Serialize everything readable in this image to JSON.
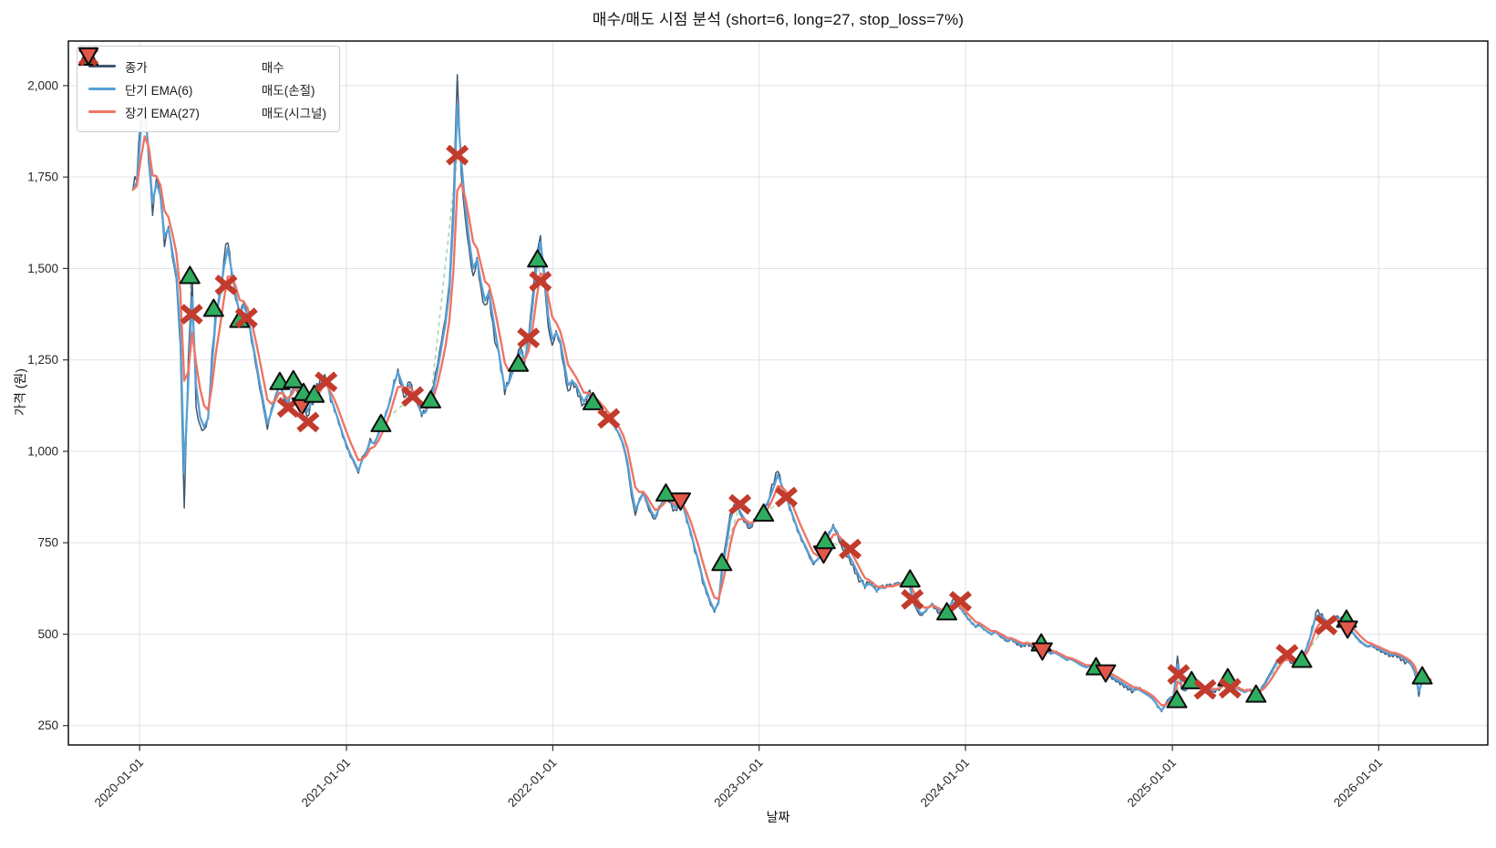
{
  "figure": {
    "title": "매수/매도 시점 분석 (short=6, long=27, stop_loss=7%)",
    "xlabel": "날짜",
    "ylabel": "가격 (원)"
  },
  "legend": {
    "items": [
      {
        "label": "종가",
        "icon": "line",
        "color": "#3f5870"
      },
      {
        "label": "단기 EMA(6)",
        "icon": "line",
        "color": "#57a0d6"
      },
      {
        "label": "장기 EMA(27)",
        "icon": "line",
        "color": "#ee7565"
      },
      {
        "label": "매수",
        "icon": "triangle-up",
        "color": "#2fad5f"
      },
      {
        "label": "매도(손절)",
        "icon": "x",
        "color": "#c23b2c"
      },
      {
        "label": "매도(시그널)",
        "icon": "triangle-down",
        "color": "#e2574a"
      }
    ]
  },
  "chart_data": {
    "type": "line",
    "title": "매수/매도 시점 분석 (short=6, long=27, stop_loss=7%)",
    "xlabel": "날짜",
    "ylabel": "가격 (원)",
    "grid": true,
    "legend_position": "upper-left",
    "x_domain": [
      "2019-08-28",
      "2026-07-13"
    ],
    "ylim": [
      197,
      2122
    ],
    "yticks": [
      250,
      500,
      750,
      1000,
      1250,
      1500,
      1750,
      2000
    ],
    "ytick_labels": [
      "250",
      "500",
      "750",
      "1,000",
      "1,250",
      "1,500",
      "1,750",
      "2,000"
    ],
    "xticks": [
      "2020-01-01",
      "2021-01-01",
      "2022-01-01",
      "2023-01-01",
      "2024-01-01",
      "2025-01-01",
      "2026-01-01"
    ],
    "series_start_date": "2019-12-20",
    "interval_days": 7,
    "series": [
      {
        "name": "종가",
        "kind": "close",
        "color": "#3f5870",
        "width": 1.5
      },
      {
        "name": "단기 EMA(6)",
        "kind": "ema",
        "span_days": 6,
        "color": "#57a0d6",
        "width": 2.3
      },
      {
        "name": "장기 EMA(27)",
        "kind": "ema",
        "span_days": 27,
        "color": "#ee7565",
        "width": 2.4
      }
    ],
    "close": [
      1715,
      1740,
      1905,
      1950,
      1790,
      1645,
      1748,
      1690,
      1560,
      1615,
      1530,
      1470,
      1285,
      845,
      1250,
      1480,
      1120,
      1072,
      1060,
      1095,
      1270,
      1400,
      1440,
      1520,
      1570,
      1475,
      1415,
      1360,
      1405,
      1365,
      1300,
      1240,
      1175,
      1120,
      1060,
      1115,
      1150,
      1190,
      1155,
      1125,
      1165,
      1195,
      1155,
      1160,
      1095,
      1135,
      1155,
      1180,
      1200,
      1190,
      1135,
      1108,
      1075,
      1040,
      1010,
      985,
      965,
      940,
      985,
      1000,
      1035,
      1020,
      1050,
      1080,
      1110,
      1145,
      1195,
      1225,
      1180,
      1150,
      1190,
      1140,
      1125,
      1095,
      1108,
      1140,
      1180,
      1235,
      1300,
      1365,
      1460,
      1680,
      2030,
      1760,
      1640,
      1555,
      1480,
      1530,
      1445,
      1400,
      1440,
      1350,
      1285,
      1220,
      1155,
      1190,
      1225,
      1250,
      1285,
      1240,
      1310,
      1420,
      1530,
      1590,
      1465,
      1340,
      1290,
      1330,
      1295,
      1230,
      1165,
      1195,
      1180,
      1150,
      1130,
      1160,
      1140,
      1135,
      1120,
      1105,
      1090,
      1075,
      1060,
      1040,
      1010,
      960,
      880,
      825,
      870,
      890,
      855,
      830,
      815,
      850,
      870,
      885,
      860,
      840,
      865,
      850,
      805,
      770,
      725,
      690,
      640,
      610,
      580,
      560,
      590,
      695,
      760,
      830,
      855,
      845,
      820,
      805,
      790,
      815,
      825,
      830,
      855,
      880,
      910,
      945,
      900,
      875,
      840,
      810,
      780,
      755,
      735,
      710,
      690,
      705,
      720,
      755,
      780,
      800,
      775,
      745,
      730,
      710,
      690,
      665,
      645,
      625,
      640,
      630,
      615,
      630,
      625,
      635,
      630,
      640,
      638,
      645,
      648,
      595,
      570,
      552,
      560,
      575,
      585,
      570,
      560,
      558,
      575,
      590,
      585,
      570,
      555,
      540,
      528,
      518,
      525,
      512,
      505,
      498,
      508,
      495,
      488,
      480,
      488,
      478,
      472,
      468,
      478,
      470,
      462,
      472,
      460,
      452,
      445,
      450,
      442,
      435,
      428,
      432,
      425,
      418,
      412,
      408,
      415,
      410,
      405,
      398,
      392,
      385,
      378,
      372,
      365,
      358,
      352,
      345,
      350,
      342,
      335,
      328,
      318,
      300,
      288,
      310,
      325,
      330,
      440,
      350,
      345,
      358,
      372,
      365,
      355,
      348,
      352,
      345,
      350,
      358,
      380,
      355,
      348,
      352,
      345,
      340,
      348,
      342,
      335,
      348,
      365,
      385,
      405,
      425,
      438,
      448,
      432,
      420,
      428,
      432,
      450,
      478,
      520,
      560,
      552,
      540,
      522,
      535,
      548,
      540,
      545,
      520,
      505,
      492,
      480,
      472,
      465,
      470,
      462,
      458,
      452,
      448,
      442,
      448,
      440,
      432,
      425,
      415,
      390,
      330,
      385,
      378,
      372
    ],
    "markers": [
      {
        "date": "2020-03-30",
        "type": "buy",
        "price": 1480
      },
      {
        "date": "2020-04-02",
        "type": "stop",
        "price": 1375
      },
      {
        "date": "2020-05-11",
        "type": "buy",
        "price": 1390
      },
      {
        "date": "2020-06-02",
        "type": "stop",
        "price": 1455
      },
      {
        "date": "2020-06-26",
        "type": "buy",
        "price": 1360
      },
      {
        "date": "2020-07-08",
        "type": "stop",
        "price": 1365
      },
      {
        "date": "2020-09-05",
        "type": "buy",
        "price": 1190
      },
      {
        "date": "2020-09-20",
        "type": "stop",
        "price": 1120
      },
      {
        "date": "2020-09-29",
        "type": "buy",
        "price": 1195
      },
      {
        "date": "2020-10-14",
        "type": "signal",
        "price": 1125
      },
      {
        "date": "2020-10-17",
        "type": "buy",
        "price": 1160
      },
      {
        "date": "2020-10-25",
        "type": "stop",
        "price": 1080
      },
      {
        "date": "2020-11-05",
        "type": "buy",
        "price": 1155
      },
      {
        "date": "2020-11-26",
        "type": "stop",
        "price": 1190
      },
      {
        "date": "2021-03-03",
        "type": "buy",
        "price": 1075
      },
      {
        "date": "2021-04-28",
        "type": "stop",
        "price": 1150
      },
      {
        "date": "2021-05-30",
        "type": "buy",
        "price": 1140
      },
      {
        "date": "2021-07-16",
        "type": "stop",
        "price": 1810
      },
      {
        "date": "2021-11-01",
        "type": "buy",
        "price": 1240
      },
      {
        "date": "2021-11-19",
        "type": "stop",
        "price": 1310
      },
      {
        "date": "2021-12-05",
        "type": "buy",
        "price": 1525
      },
      {
        "date": "2021-12-10",
        "type": "stop",
        "price": 1465
      },
      {
        "date": "2022-03-13",
        "type": "buy",
        "price": 1135
      },
      {
        "date": "2022-04-10",
        "type": "stop",
        "price": 1090
      },
      {
        "date": "2022-07-20",
        "type": "buy",
        "price": 885
      },
      {
        "date": "2022-08-15",
        "type": "signal",
        "price": 865
      },
      {
        "date": "2022-10-27",
        "type": "buy",
        "price": 695
      },
      {
        "date": "2022-11-28",
        "type": "stop",
        "price": 855
      },
      {
        "date": "2023-01-09",
        "type": "buy",
        "price": 830
      },
      {
        "date": "2023-02-18",
        "type": "stop",
        "price": 875
      },
      {
        "date": "2023-04-25",
        "type": "signal",
        "price": 720
      },
      {
        "date": "2023-04-28",
        "type": "buy",
        "price": 755
      },
      {
        "date": "2023-06-11",
        "type": "stop",
        "price": 733
      },
      {
        "date": "2023-09-25",
        "type": "buy",
        "price": 650
      },
      {
        "date": "2023-09-29",
        "type": "stop",
        "price": 595
      },
      {
        "date": "2023-11-29",
        "type": "buy",
        "price": 560
      },
      {
        "date": "2023-12-23",
        "type": "stop",
        "price": 590
      },
      {
        "date": "2024-05-14",
        "type": "buy",
        "price": 475
      },
      {
        "date": "2024-05-16",
        "type": "signal",
        "price": 455
      },
      {
        "date": "2024-08-19",
        "type": "buy",
        "price": 410
      },
      {
        "date": "2024-09-05",
        "type": "signal",
        "price": 395
      },
      {
        "date": "2025-01-09",
        "type": "buy",
        "price": 320
      },
      {
        "date": "2025-01-12",
        "type": "stop",
        "price": 390
      },
      {
        "date": "2025-02-04",
        "type": "buy",
        "price": 372
      },
      {
        "date": "2025-02-28",
        "type": "stop",
        "price": 349
      },
      {
        "date": "2025-04-09",
        "type": "buy",
        "price": 380
      },
      {
        "date": "2025-04-13",
        "type": "stop",
        "price": 352
      },
      {
        "date": "2025-05-29",
        "type": "buy",
        "price": 335
      },
      {
        "date": "2025-07-23",
        "type": "stop",
        "price": 445
      },
      {
        "date": "2025-08-18",
        "type": "buy",
        "price": 430
      },
      {
        "date": "2025-09-30",
        "type": "stop",
        "price": 525
      },
      {
        "date": "2025-11-05",
        "type": "buy",
        "price": 540
      },
      {
        "date": "2025-11-07",
        "type": "signal",
        "price": 515
      },
      {
        "date": "2026-03-19",
        "type": "buy",
        "price": 385
      }
    ],
    "marker_styles": {
      "buy": {
        "fill": "#2fad5f",
        "edge": "#0d0d0d"
      },
      "stop": {
        "color": "#c23b2c"
      },
      "signal": {
        "fill": "#e2574a",
        "edge": "#0d0d0d"
      }
    },
    "connector_color": "#a8d8b0",
    "grid_color": "#e3e3e8",
    "spine_color": "#000000",
    "tick_color": "#333333",
    "tick_label_color": "#262626"
  }
}
